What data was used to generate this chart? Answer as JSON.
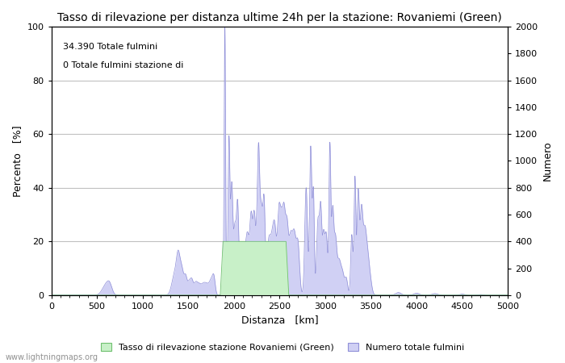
{
  "title": "Tasso di rilevazione per distanza ultime 24h per la stazione: Rovaniemi (Green)",
  "xlabel": "Distanza   [km]",
  "ylabel_left": "Percento   [%]",
  "ylabel_right": "Numero",
  "annotation_line1": "34.390 Totale fulmini",
  "annotation_line2": "0 Totale fulmini stazione di",
  "xlim": [
    0,
    5000
  ],
  "ylim_left": [
    0,
    100
  ],
  "ylim_right": [
    0,
    2000
  ],
  "xticks": [
    0,
    500,
    1000,
    1500,
    2000,
    2500,
    3000,
    3500,
    4000,
    4500,
    5000
  ],
  "yticks_left": [
    0,
    20,
    40,
    60,
    80,
    100
  ],
  "yticks_right": [
    0,
    200,
    400,
    600,
    800,
    1000,
    1200,
    1400,
    1600,
    1800,
    2000
  ],
  "bg_color": "#ffffff",
  "plot_bg_color": "#ffffff",
  "grid_color": "#c0c0c0",
  "fill_color_green": "#c8f0c8",
  "fill_color_blue": "#d0d0f4",
  "line_color": "#9090d8",
  "legend_label_green": "Tasso di rilevazione stazione Rovaniemi (Green)",
  "legend_label_blue": "Numero totale fulmini",
  "watermark": "www.lightningmaps.org",
  "title_fontsize": 10,
  "axis_fontsize": 9,
  "tick_fontsize": 8,
  "annot_fontsize": 8
}
